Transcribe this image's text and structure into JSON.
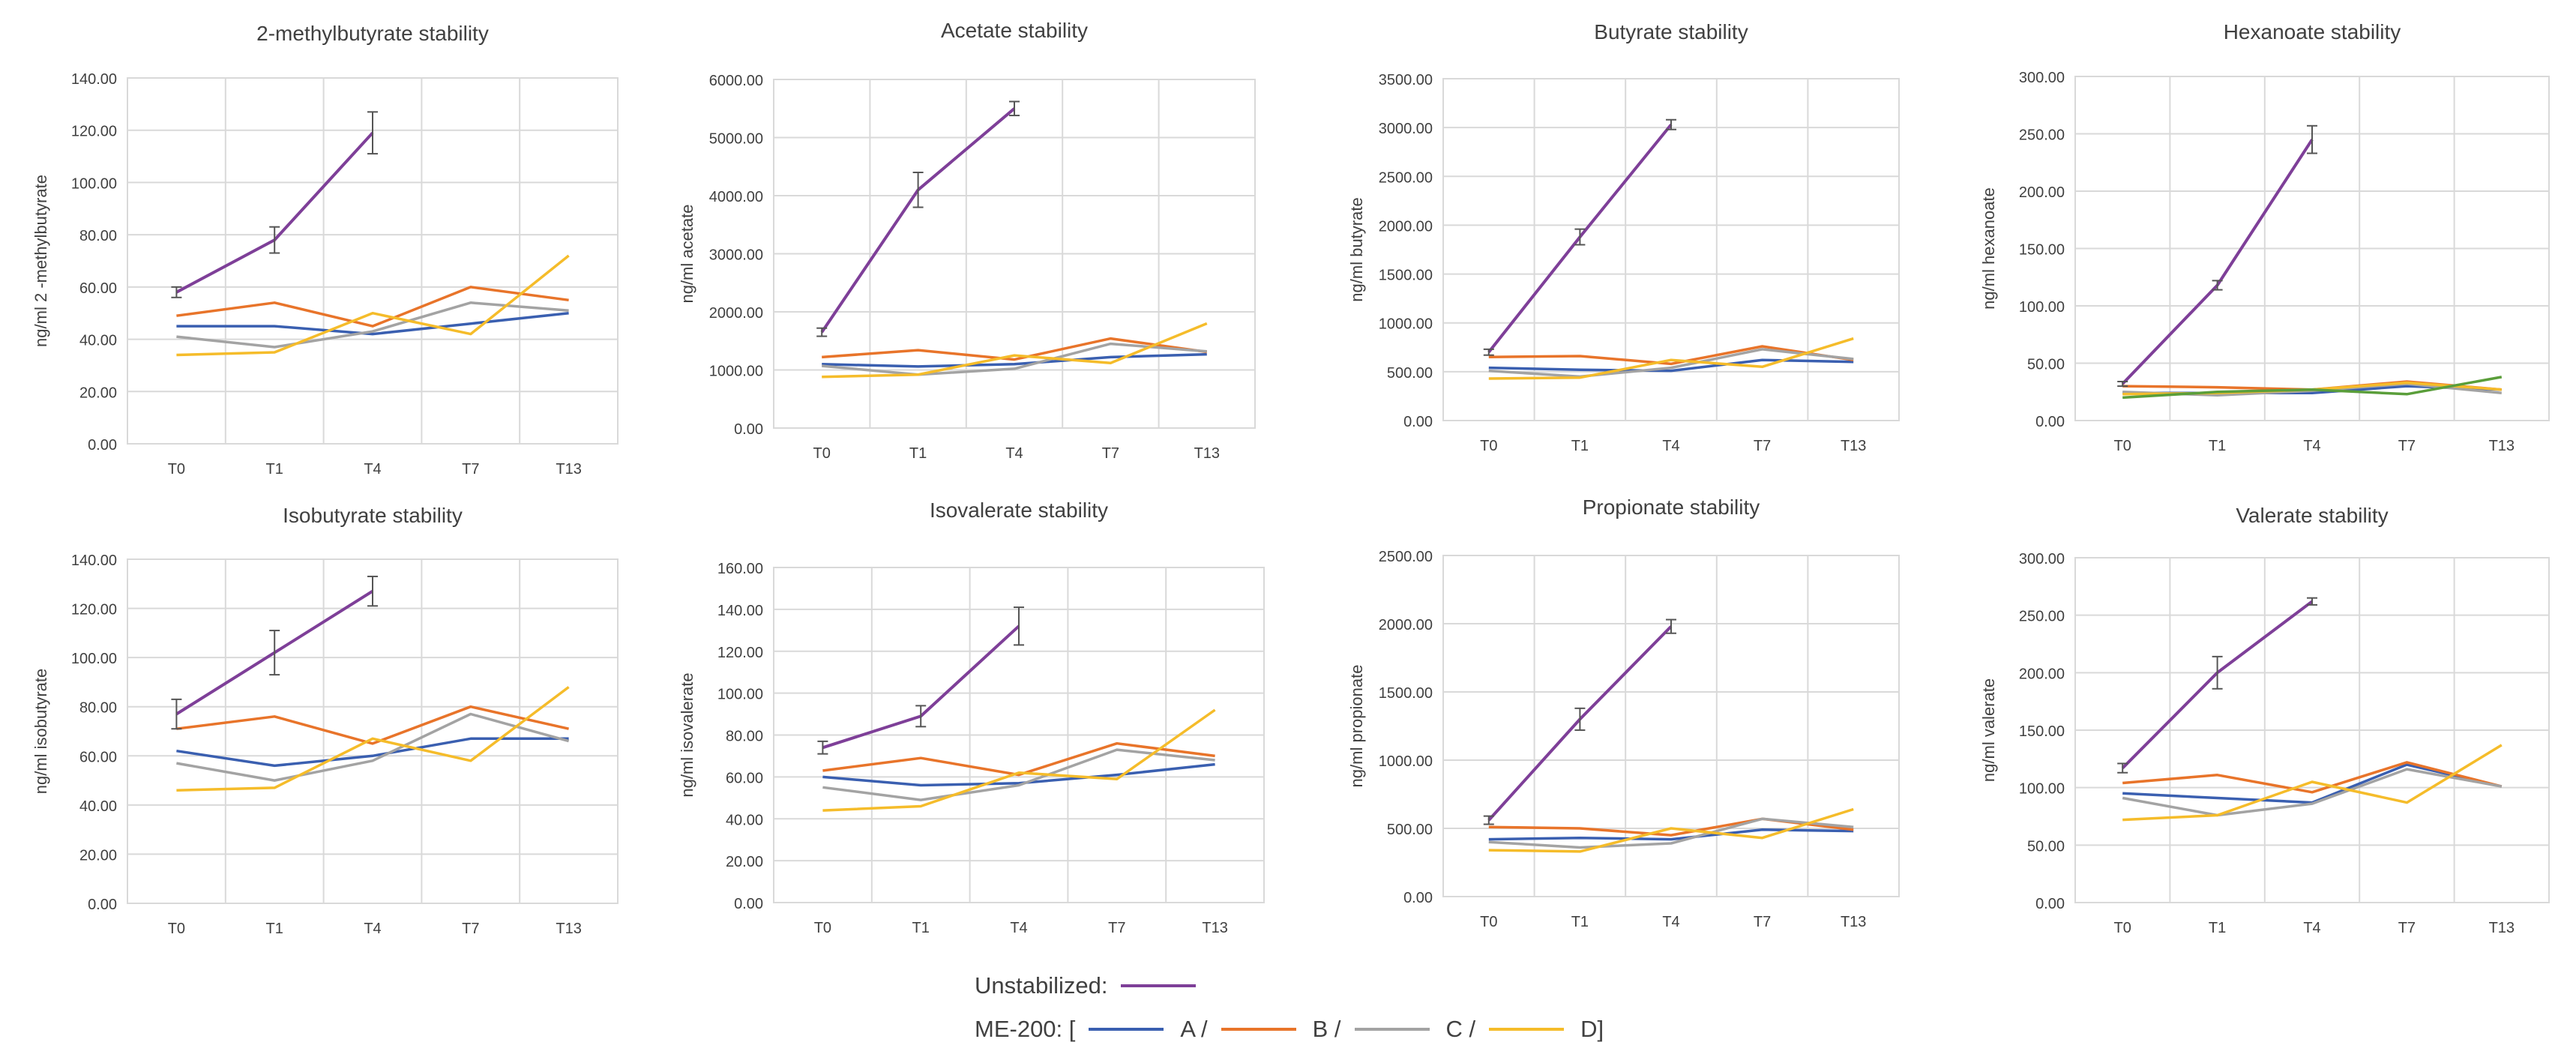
{
  "colors": {
    "unstabilized": "#7e3f98",
    "A": "#3a5fb0",
    "B": "#e8742a",
    "C": "#a3a3a3",
    "D": "#f5bc2a",
    "extra_green": "#5a9e3a"
  },
  "legend": {
    "unstabilized_label": "Unstabilized:",
    "me200_label": "ME-200: [",
    "a_label": "A /",
    "b_label": "B /",
    "c_label": "C /",
    "d_label": "D]"
  },
  "chart_data": [
    {
      "type": "line",
      "title": "2-methylbutyrate stability",
      "ylabel": "ng/ml 2 -methylbutyrate",
      "categories": [
        "T0",
        "T1",
        "T4",
        "T7",
        "T13"
      ],
      "ylim": [
        0,
        140
      ],
      "yticks": [
        "0.00",
        "20.00",
        "40.00",
        "60.00",
        "80.00",
        "100.00",
        "120.00",
        "140.00"
      ],
      "series": [
        {
          "key": "A",
          "values": [
            45,
            45,
            42,
            46,
            50
          ]
        },
        {
          "key": "B",
          "values": [
            49,
            54,
            45,
            60,
            55
          ]
        },
        {
          "key": "C",
          "values": [
            41,
            37,
            43,
            54,
            51
          ]
        },
        {
          "key": "D",
          "values": [
            34,
            35,
            50,
            42,
            72
          ]
        },
        {
          "key": "unstabilized",
          "values": [
            58,
            78,
            119,
            null,
            null
          ],
          "errors": [
            2,
            5,
            8,
            null,
            null
          ]
        }
      ]
    },
    {
      "type": "line",
      "title": "Acetate  stability",
      "ylabel": "ng/ml acetate",
      "categories": [
        "T0",
        "T1",
        "T4",
        "T7",
        "T13"
      ],
      "ylim": [
        0,
        6000
      ],
      "yticks": [
        "0.00",
        "1000.00",
        "2000.00",
        "3000.00",
        "4000.00",
        "5000.00",
        "6000.00"
      ],
      "series": [
        {
          "key": "A",
          "values": [
            1100,
            1060,
            1100,
            1220,
            1270
          ]
        },
        {
          "key": "B",
          "values": [
            1220,
            1340,
            1180,
            1540,
            1310
          ]
        },
        {
          "key": "C",
          "values": [
            1070,
            920,
            1020,
            1450,
            1320
          ]
        },
        {
          "key": "D",
          "values": [
            880,
            920,
            1250,
            1120,
            1800
          ]
        },
        {
          "key": "unstabilized",
          "values": [
            1650,
            4100,
            5500,
            null,
            null
          ],
          "errors": [
            70,
            300,
            120,
            null,
            null
          ]
        }
      ]
    },
    {
      "type": "line",
      "title": "Butyrate  stability",
      "ylabel": "ng/ml butyrate",
      "categories": [
        "T0",
        "T1",
        "T4",
        "T7",
        "T13"
      ],
      "ylim": [
        0,
        3500
      ],
      "yticks": [
        "0.00",
        "500.00",
        "1000.00",
        "1500.00",
        "2000.00",
        "2500.00",
        "3000.00",
        "3500.00"
      ],
      "series": [
        {
          "key": "A",
          "values": [
            540,
            520,
            510,
            620,
            600
          ]
        },
        {
          "key": "B",
          "values": [
            650,
            660,
            580,
            760,
            620
          ]
        },
        {
          "key": "C",
          "values": [
            510,
            450,
            540,
            730,
            630
          ]
        },
        {
          "key": "D",
          "values": [
            430,
            440,
            620,
            550,
            840
          ]
        },
        {
          "key": "unstabilized",
          "values": [
            700,
            1880,
            3030,
            null,
            null
          ],
          "errors": [
            30,
            80,
            50,
            null,
            null
          ]
        }
      ]
    },
    {
      "type": "line",
      "title": "Hexanoate stability",
      "ylabel": "ng/ml hexanoate",
      "categories": [
        "T0",
        "T1",
        "T4",
        "T7",
        "T13"
      ],
      "ylim": [
        0,
        300
      ],
      "yticks": [
        "0.00",
        "50.00",
        "100.00",
        "150.00",
        "200.00",
        "250.00",
        "300.00"
      ],
      "series": [
        {
          "key": "A",
          "values": [
            24,
            24,
            24,
            30,
            27
          ]
        },
        {
          "key": "B",
          "values": [
            30,
            29,
            27,
            34,
            27
          ]
        },
        {
          "key": "C",
          "values": [
            25,
            22,
            26,
            32,
            24
          ]
        },
        {
          "key": "D",
          "values": [
            23,
            24,
            27,
            33,
            27
          ]
        },
        {
          "key": "extra_green",
          "values": [
            20,
            25,
            27,
            23,
            38
          ]
        },
        {
          "key": "unstabilized",
          "values": [
            32,
            118,
            245,
            null,
            null
          ],
          "errors": [
            2,
            4,
            12,
            null,
            null
          ]
        }
      ]
    },
    {
      "type": "line",
      "title": "Isobutyrate stability",
      "ylabel": "ng/ml isobutyrate",
      "categories": [
        "T0",
        "T1",
        "T4",
        "T7",
        "T13"
      ],
      "ylim": [
        0,
        140
      ],
      "yticks": [
        "0.00",
        "20.00",
        "40.00",
        "60.00",
        "80.00",
        "100.00",
        "120.00",
        "140.00"
      ],
      "series": [
        {
          "key": "A",
          "values": [
            62,
            56,
            60,
            67,
            67
          ]
        },
        {
          "key": "B",
          "values": [
            71,
            76,
            65,
            80,
            71
          ]
        },
        {
          "key": "C",
          "values": [
            57,
            50,
            58,
            77,
            66
          ]
        },
        {
          "key": "D",
          "values": [
            46,
            47,
            67,
            58,
            88
          ]
        },
        {
          "key": "unstabilized",
          "values": [
            77,
            102,
            127,
            null,
            null
          ],
          "errors": [
            6,
            9,
            6,
            null,
            null
          ]
        }
      ]
    },
    {
      "type": "line",
      "title": "Isovalerate stability",
      "ylabel": "ng/ml isovalerate",
      "categories": [
        "T0",
        "T1",
        "T4",
        "T7",
        "T13"
      ],
      "ylim": [
        0,
        160
      ],
      "yticks": [
        "0.00",
        "20.00",
        "40.00",
        "60.00",
        "80.00",
        "100.00",
        "120.00",
        "140.00",
        "160.00"
      ],
      "series": [
        {
          "key": "A",
          "values": [
            60,
            56,
            57,
            61,
            66
          ]
        },
        {
          "key": "B",
          "values": [
            63,
            69,
            61,
            76,
            70
          ]
        },
        {
          "key": "C",
          "values": [
            55,
            49,
            56,
            73,
            68
          ]
        },
        {
          "key": "D",
          "values": [
            44,
            46,
            62,
            59,
            92
          ]
        },
        {
          "key": "unstabilized",
          "values": [
            74,
            89,
            132,
            null,
            null
          ],
          "errors": [
            3,
            5,
            9,
            null,
            null
          ]
        }
      ]
    },
    {
      "type": "line",
      "title": "Propionate  stability",
      "ylabel": "ng/ml propionate",
      "categories": [
        "T0",
        "T1",
        "T4",
        "T7",
        "T13"
      ],
      "ylim": [
        0,
        2500
      ],
      "yticks": [
        "0.00",
        "500.00",
        "1000.00",
        "1500.00",
        "2000.00",
        "2500.00"
      ],
      "series": [
        {
          "key": "A",
          "values": [
            420,
            430,
            420,
            490,
            480
          ]
        },
        {
          "key": "B",
          "values": [
            510,
            500,
            450,
            570,
            490
          ]
        },
        {
          "key": "C",
          "values": [
            400,
            360,
            390,
            570,
            510
          ]
        },
        {
          "key": "D",
          "values": [
            340,
            330,
            500,
            430,
            640
          ]
        },
        {
          "key": "unstabilized",
          "values": [
            560,
            1300,
            1980,
            null,
            null
          ],
          "errors": [
            30,
            80,
            50,
            null,
            null
          ]
        }
      ]
    },
    {
      "type": "line",
      "title": "Valerate stability",
      "ylabel": "ng/ml valerate",
      "categories": [
        "T0",
        "T1",
        "T4",
        "T7",
        "T13"
      ],
      "ylim": [
        0,
        300
      ],
      "yticks": [
        "0.00",
        "50.00",
        "100.00",
        "150.00",
        "200.00",
        "250.00",
        "300.00"
      ],
      "series": [
        {
          "key": "A",
          "values": [
            95,
            91,
            87,
            120,
            101
          ]
        },
        {
          "key": "B",
          "values": [
            104,
            111,
            96,
            122,
            101
          ]
        },
        {
          "key": "C",
          "values": [
            91,
            76,
            86,
            116,
            101
          ]
        },
        {
          "key": "D",
          "values": [
            72,
            76,
            105,
            87,
            137
          ]
        },
        {
          "key": "unstabilized",
          "values": [
            117,
            200,
            262,
            null,
            null
          ],
          "errors": [
            4,
            14,
            3,
            null,
            null
          ]
        }
      ]
    }
  ]
}
